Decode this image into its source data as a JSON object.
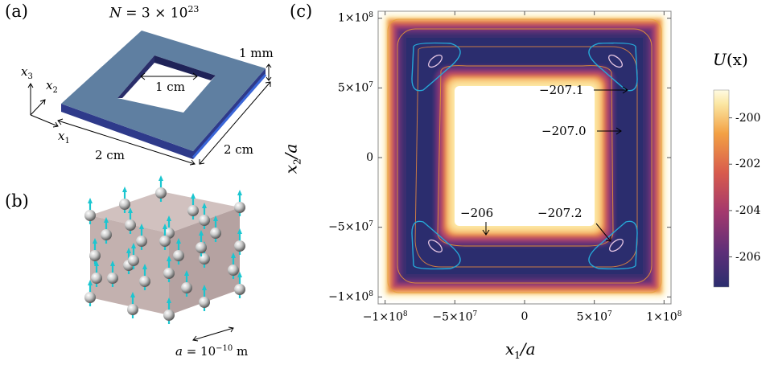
{
  "panel_a": {
    "label": "(a)",
    "title_N": "N",
    "title_eq": " = 3 × 10",
    "title_exp": "23",
    "thickness": "1 mm",
    "hole": "1 cm",
    "side_front": "2 cm",
    "side_right": "2 cm",
    "axis_x1": "x",
    "axis_x1_sub": "1",
    "axis_x2": "x",
    "axis_x2_sub": "2",
    "axis_x3": "x",
    "axis_x3_sub": "3",
    "colors": {
      "slab_top": "#5f7fa1",
      "slab_side": "#2e3a8a",
      "slab_edge": "#3b67d8"
    }
  },
  "panel_b": {
    "label": "(b)",
    "lattice_a": "a",
    "lattice_eq": " = 10",
    "lattice_exp": "−10",
    "lattice_unit": " m",
    "colors": {
      "spin": "#1cc6d0",
      "atom": "#bdbdbd",
      "box": "#b49a98"
    }
  },
  "panel_c": {
    "label": "(c)",
    "xlabel_var": "x",
    "xlabel_sub": "1",
    "xlabel_rest": "/a",
    "ylabel_var": "x",
    "ylabel_sub": "2",
    "ylabel_rest": "/a",
    "xticks": [
      {
        "m": "−1×10",
        "e": "8",
        "v": -100000000.0
      },
      {
        "m": "−5×10",
        "e": "7",
        "v": -50000000.0
      },
      {
        "m": "0",
        "e": "",
        "v": 0
      },
      {
        "m": "5×10",
        "e": "7",
        "v": 50000000.0
      },
      {
        "m": "1×10",
        "e": "8",
        "v": 100000000.0
      }
    ],
    "yticks": [
      {
        "m": "1×10",
        "e": "8",
        "v": 100000000.0
      },
      {
        "m": "5×10",
        "e": "7",
        "v": 50000000.0
      },
      {
        "m": "0",
        "e": "",
        "v": 0
      },
      {
        "m": "−5×10",
        "e": "7",
        "v": -50000000.0
      },
      {
        "m": "−1×10",
        "e": "8",
        "v": -100000000.0
      }
    ],
    "annotations": [
      "−207.1",
      "−207.0",
      "−206",
      "−207.2"
    ],
    "colorbar": {
      "title_var": "U",
      "title_rest": "(x)",
      "ticks": [
        "-200",
        "-202",
        "-204",
        "-206"
      ],
      "colors": [
        "#2b2d6e",
        "#5e2f78",
        "#a3386d",
        "#d85b4d",
        "#f3a144",
        "#fbe7a3",
        "#fffbe3"
      ]
    }
  },
  "chart_data": {
    "type": "heatmap",
    "xlabel": "x1/a",
    "ylabel": "x2/a",
    "xlim": [
      -105000000.0,
      105000000.0
    ],
    "ylim": [
      -105000000.0,
      105000000.0
    ],
    "colorbar_label": "U(x)",
    "colorbar_range": [
      -207.3,
      -198.8
    ],
    "colorbar_ticks": [
      -200,
      -202,
      -204,
      -206
    ],
    "contour_labels": [
      -207.1,
      -207.0,
      -206,
      -207.2
    ],
    "domain": "square ring: outer half-width 1e8, inner half-width 5e7"
  }
}
